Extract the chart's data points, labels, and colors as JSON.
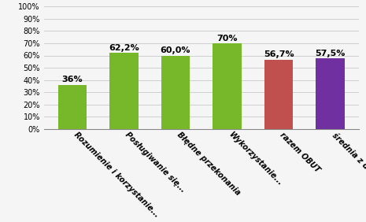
{
  "categories": [
    "Rozumienie i korzystanie...",
    "Posługiwanie się...",
    "Błędne przekonania",
    "Wykorzystanie...",
    "razem OBUT",
    "średnia z diagnoz..."
  ],
  "values": [
    36.0,
    62.2,
    60.0,
    70.0,
    56.7,
    57.5
  ],
  "labels": [
    "36%",
    "62,2%",
    "60,0%",
    "70%",
    "56,7%",
    "57,5%"
  ],
  "bar_colors": [
    "#76b82a",
    "#76b82a",
    "#76b82a",
    "#76b82a",
    "#c0504d",
    "#7030a0"
  ],
  "ylim": [
    0,
    100
  ],
  "yticks": [
    0,
    10,
    20,
    30,
    40,
    50,
    60,
    70,
    80,
    90,
    100
  ],
  "ytick_labels": [
    "0%",
    "10%",
    "20%",
    "30%",
    "40%",
    "50%",
    "60%",
    "70%",
    "80%",
    "90%",
    "100%"
  ],
  "background_color": "#f5f5f5",
  "grid_color": "#c8c8c8",
  "label_fontsize": 7.0,
  "tick_fontsize": 7.0,
  "bar_label_fontsize": 8.0,
  "bar_width": 0.55
}
